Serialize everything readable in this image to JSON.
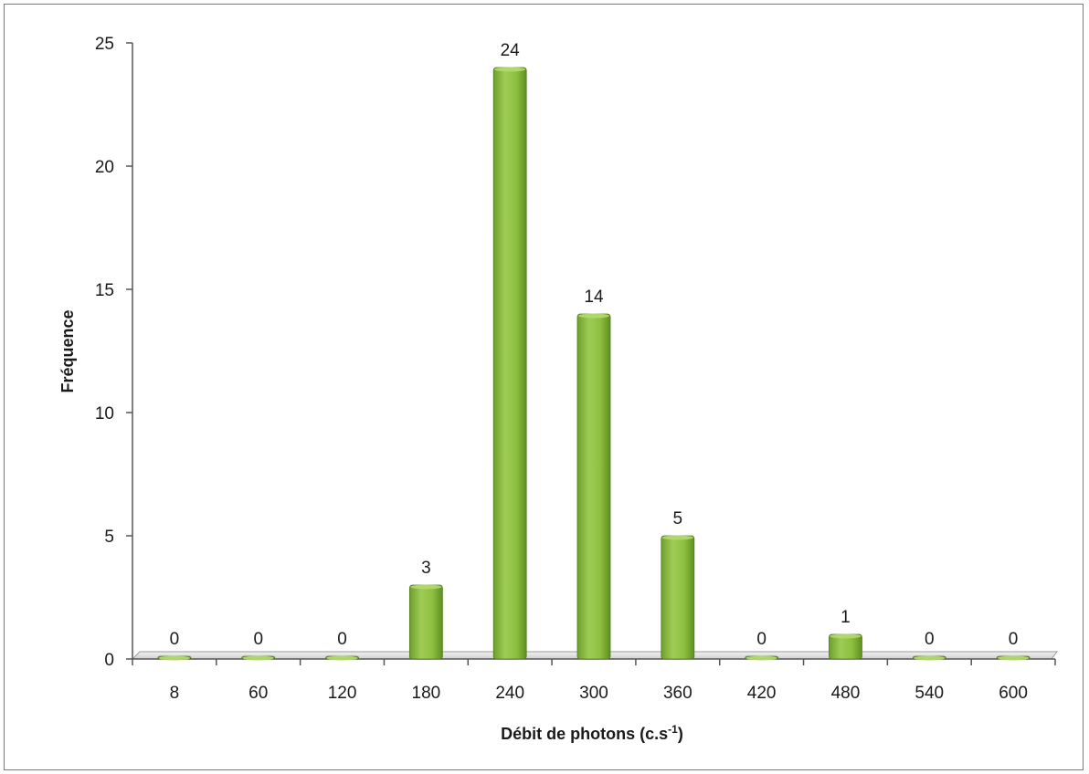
{
  "chart_data": {
    "type": "bar",
    "categories": [
      "8",
      "60",
      "120",
      "180",
      "240",
      "300",
      "360",
      "420",
      "480",
      "540",
      "600"
    ],
    "values": [
      0,
      0,
      0,
      3,
      24,
      14,
      5,
      0,
      1,
      0,
      0
    ],
    "data_labels": [
      "0",
      "0",
      "0",
      "3",
      "24",
      "14",
      "5",
      "0",
      "1",
      "0",
      "0"
    ],
    "title": "",
    "xlabel": "Débit de photons (c.s",
    "xlabel_superscript": "-1",
    "xlabel_suffix": ")",
    "ylabel": "Fréquence",
    "ylim": [
      0,
      25
    ],
    "yticks": [
      "0",
      "5",
      "10",
      "15",
      "20",
      "25"
    ],
    "grid": false,
    "legend": "none",
    "colors": {
      "bar": "#8cbf3f",
      "bar_dark": "#5e8f22",
      "bar_light": "#b3d96e",
      "floor": "#e4e4e4"
    }
  }
}
